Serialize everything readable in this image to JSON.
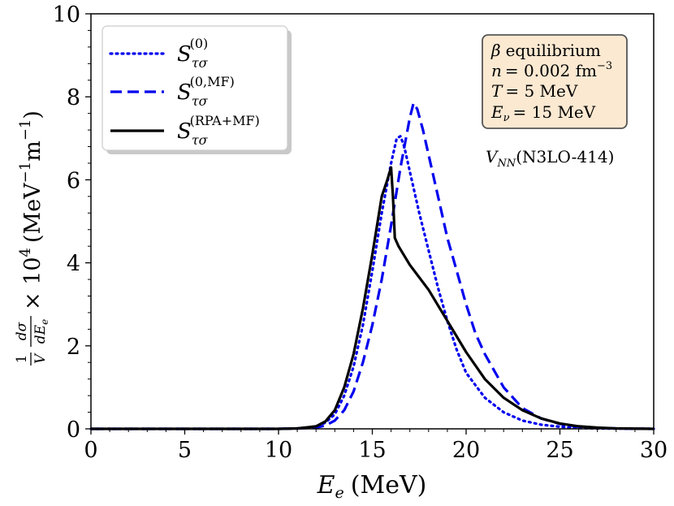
{
  "chart_data": {
    "type": "line",
    "xlabel": {
      "main": "E",
      "sub": "e",
      "units": "(MeV)"
    },
    "ylabel": {
      "frac1_num": "1",
      "frac1_den": "V",
      "frac2_num": "dσ",
      "frac2_den": "dE",
      "frac2_den_sub": "e",
      "times": "× 10",
      "exp": "4",
      "units_open": "(MeV",
      "units_exp1": "−1",
      "units_m": "m",
      "units_exp2": "−1",
      "units_close": ")"
    },
    "xlim": [
      0,
      30
    ],
    "ylim": [
      0,
      10
    ],
    "xticks": [
      0,
      5,
      10,
      15,
      20,
      25,
      30
    ],
    "yticks": [
      0,
      2,
      4,
      6,
      8,
      10
    ],
    "legend_position": "top-left",
    "series": [
      {
        "name": "S_τσ^(0)",
        "legend_base": "S",
        "legend_sub": "τσ",
        "legend_sup": "(0)",
        "color": "#0000ee",
        "style": "dotted",
        "points": [
          [
            0,
            0
          ],
          [
            10,
            0
          ],
          [
            11,
            0.01
          ],
          [
            12,
            0.05
          ],
          [
            12.5,
            0.15
          ],
          [
            13,
            0.35
          ],
          [
            13.5,
            0.8
          ],
          [
            14,
            1.5
          ],
          [
            14.5,
            2.5
          ],
          [
            15,
            3.8
          ],
          [
            15.5,
            5.2
          ],
          [
            16,
            6.4
          ],
          [
            16.3,
            7.0
          ],
          [
            16.5,
            7.05
          ],
          [
            16.7,
            6.8
          ],
          [
            17,
            6.2
          ],
          [
            17.5,
            5.2
          ],
          [
            18,
            4.3
          ],
          [
            18.5,
            3.4
          ],
          [
            19,
            2.6
          ],
          [
            19.5,
            1.9
          ],
          [
            20,
            1.35
          ],
          [
            21,
            0.75
          ],
          [
            22,
            0.4
          ],
          [
            23,
            0.2
          ],
          [
            24,
            0.1
          ],
          [
            25,
            0.05
          ],
          [
            26,
            0.02
          ],
          [
            27,
            0.01
          ],
          [
            30,
            0
          ]
        ]
      },
      {
        "name": "S_τσ^(0,MF)",
        "legend_base": "S",
        "legend_sub": "τσ",
        "legend_sup": "(0,MF)",
        "color": "#0000ee",
        "style": "dashed",
        "points": [
          [
            0,
            0
          ],
          [
            10,
            0
          ],
          [
            11,
            0.01
          ],
          [
            12,
            0.03
          ],
          [
            12.5,
            0.08
          ],
          [
            13,
            0.2
          ],
          [
            13.5,
            0.45
          ],
          [
            14,
            0.9
          ],
          [
            14.5,
            1.6
          ],
          [
            15,
            2.5
          ],
          [
            15.5,
            3.6
          ],
          [
            16,
            4.9
          ],
          [
            16.5,
            6.3
          ],
          [
            17,
            7.5
          ],
          [
            17.2,
            7.85
          ],
          [
            17.4,
            7.7
          ],
          [
            17.7,
            7.2
          ],
          [
            18,
            6.6
          ],
          [
            18.5,
            5.6
          ],
          [
            19,
            4.6
          ],
          [
            19.5,
            3.8
          ],
          [
            20,
            3.0
          ],
          [
            20.5,
            2.3
          ],
          [
            21,
            1.8
          ],
          [
            22,
            1.0
          ],
          [
            23,
            0.5
          ],
          [
            24,
            0.25
          ],
          [
            25,
            0.12
          ],
          [
            26,
            0.05
          ],
          [
            27,
            0.02
          ],
          [
            28,
            0.01
          ],
          [
            30,
            0
          ]
        ]
      },
      {
        "name": "S_τσ^(RPA+MF)",
        "legend_base": "S",
        "legend_sub": "τσ",
        "legend_sup": "(RPA+MF)",
        "color": "#000000",
        "style": "solid",
        "points": [
          [
            0,
            0
          ],
          [
            10,
            0
          ],
          [
            11,
            0.01
          ],
          [
            12,
            0.06
          ],
          [
            12.5,
            0.18
          ],
          [
            13,
            0.45
          ],
          [
            13.5,
            1.0
          ],
          [
            14,
            1.8
          ],
          [
            14.5,
            2.9
          ],
          [
            15,
            4.2
          ],
          [
            15.5,
            5.6
          ],
          [
            15.8,
            6.0
          ],
          [
            16,
            6.3
          ],
          [
            16.1,
            5.6
          ],
          [
            16.2,
            4.6
          ],
          [
            16.4,
            4.4
          ],
          [
            17,
            3.95
          ],
          [
            18,
            3.35
          ],
          [
            19,
            2.6
          ],
          [
            20,
            1.85
          ],
          [
            21,
            1.2
          ],
          [
            22,
            0.75
          ],
          [
            23,
            0.45
          ],
          [
            24,
            0.25
          ],
          [
            25,
            0.13
          ],
          [
            26,
            0.06
          ],
          [
            27,
            0.03
          ],
          [
            28,
            0.01
          ],
          [
            30,
            0
          ]
        ]
      }
    ]
  },
  "annotation_box": {
    "line1_sym": "β",
    "line1_text": "equilibrium",
    "line2_sym": "n",
    "line2_text": "= 0.002 fm",
    "line2_exp": "−3",
    "line3_sym": "T",
    "line3_text": "= 5 MeV",
    "line4_sym": "E",
    "line4_sub": "ν",
    "line4_text": "= 15 MeV",
    "bg_color": "#fbe9d2",
    "border_color": "#555555"
  },
  "potential_label": {
    "sym": "V",
    "sub": "NN",
    "text": "(N3LO-414)"
  }
}
